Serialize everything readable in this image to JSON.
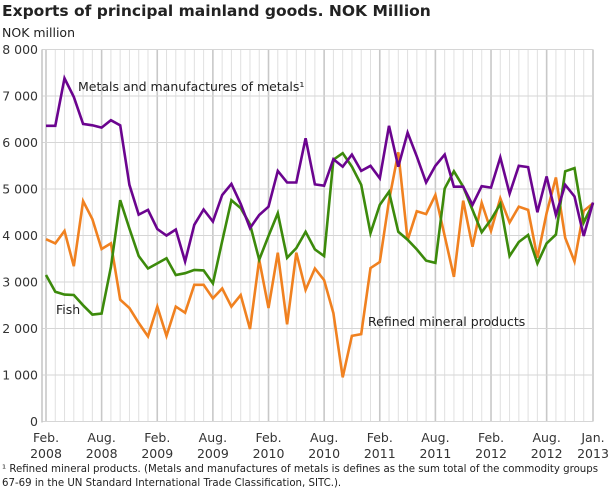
{
  "chart_data": {
    "type": "line",
    "title": "Exports of principal mainland goods. NOK Million",
    "ylabel": "NOK million",
    "ylim": [
      0,
      8000
    ],
    "yticks": [
      "0",
      "1 000",
      "2 000",
      "3 000",
      "4 000",
      "5 000",
      "6 000",
      "7 000",
      "8 000"
    ],
    "grid": true,
    "x_start": "2008-02",
    "x_end": "2013-01",
    "xtick_labels": [
      {
        "month": "Feb.",
        "year": "2008"
      },
      {
        "month": "Aug.",
        "year": "2008"
      },
      {
        "month": "Feb.",
        "year": "2009"
      },
      {
        "month": "Aug.",
        "year": "2009"
      },
      {
        "month": "Feb.",
        "year": "2010"
      },
      {
        "month": "Aug.",
        "year": "2010"
      },
      {
        "month": "Feb.",
        "year": "2011"
      },
      {
        "month": "Aug.",
        "year": "2011"
      },
      {
        "month": "Feb.",
        "year": "2012"
      },
      {
        "month": "Aug.",
        "year": "2012"
      },
      {
        "month": "Jan.",
        "year": "2013"
      }
    ],
    "series": [
      {
        "name": "Metals and manufactures of metals¹",
        "color": "#6b048f",
        "values": [
          6360,
          6360,
          7380,
          6980,
          6400,
          6370,
          6320,
          6480,
          6370,
          5090,
          4450,
          4550,
          4140,
          4000,
          4130,
          3440,
          4230,
          4560,
          4300,
          4870,
          5110,
          4680,
          4160,
          4440,
          4620,
          5390,
          5140,
          5140,
          6090,
          5100,
          5070,
          5640,
          5480,
          5740,
          5390,
          5500,
          5230,
          6360,
          5480,
          6210,
          5700,
          5140,
          5500,
          5740,
          5050,
          5050,
          4660,
          5060,
          5030,
          5680,
          4900,
          5500,
          5470,
          4500,
          5270,
          4440,
          5090,
          4840,
          3990,
          4710
        ]
      },
      {
        "name": "Refined mineral products",
        "color": "#f08120",
        "values": [
          3920,
          3830,
          4100,
          3340,
          4740,
          4350,
          3710,
          3830,
          2620,
          2440,
          2120,
          1830,
          2470,
          1840,
          2470,
          2340,
          2940,
          2940,
          2650,
          2860,
          2470,
          2720,
          1990,
          3480,
          2440,
          3630,
          2090,
          3630,
          2830,
          3290,
          3040,
          2330,
          950,
          1840,
          1880,
          3300,
          3430,
          4750,
          5790,
          3900,
          4520,
          4460,
          4870,
          3990,
          3110,
          4750,
          3760,
          4700,
          4100,
          4800,
          4280,
          4620,
          4550,
          3520,
          4480,
          5250,
          3950,
          3440,
          4530,
          4690
        ]
      },
      {
        "name": "Fish",
        "color": "#3c8a0b",
        "values": [
          3150,
          2790,
          2730,
          2720,
          2500,
          2300,
          2320,
          3320,
          4760,
          4150,
          3560,
          3290,
          3400,
          3510,
          3150,
          3190,
          3260,
          3250,
          2970,
          3880,
          4760,
          4590,
          4240,
          3480,
          3990,
          4480,
          3520,
          3730,
          4080,
          3700,
          3560,
          5630,
          5770,
          5480,
          5090,
          4050,
          4660,
          4940,
          4080,
          3910,
          3700,
          3460,
          3410,
          5010,
          5380,
          5050,
          4550,
          4070,
          4340,
          4680,
          3560,
          3860,
          4010,
          3400,
          3830,
          4020,
          5380,
          5450,
          4280,
          4690
        ]
      }
    ],
    "footnote": [
      "¹ Refined mineral products. (Metals and manufactures of metals is defines as the sum total of the commodity groups",
      "67-69 in the  UN Standard International Trade Classification, SITC.)."
    ]
  }
}
